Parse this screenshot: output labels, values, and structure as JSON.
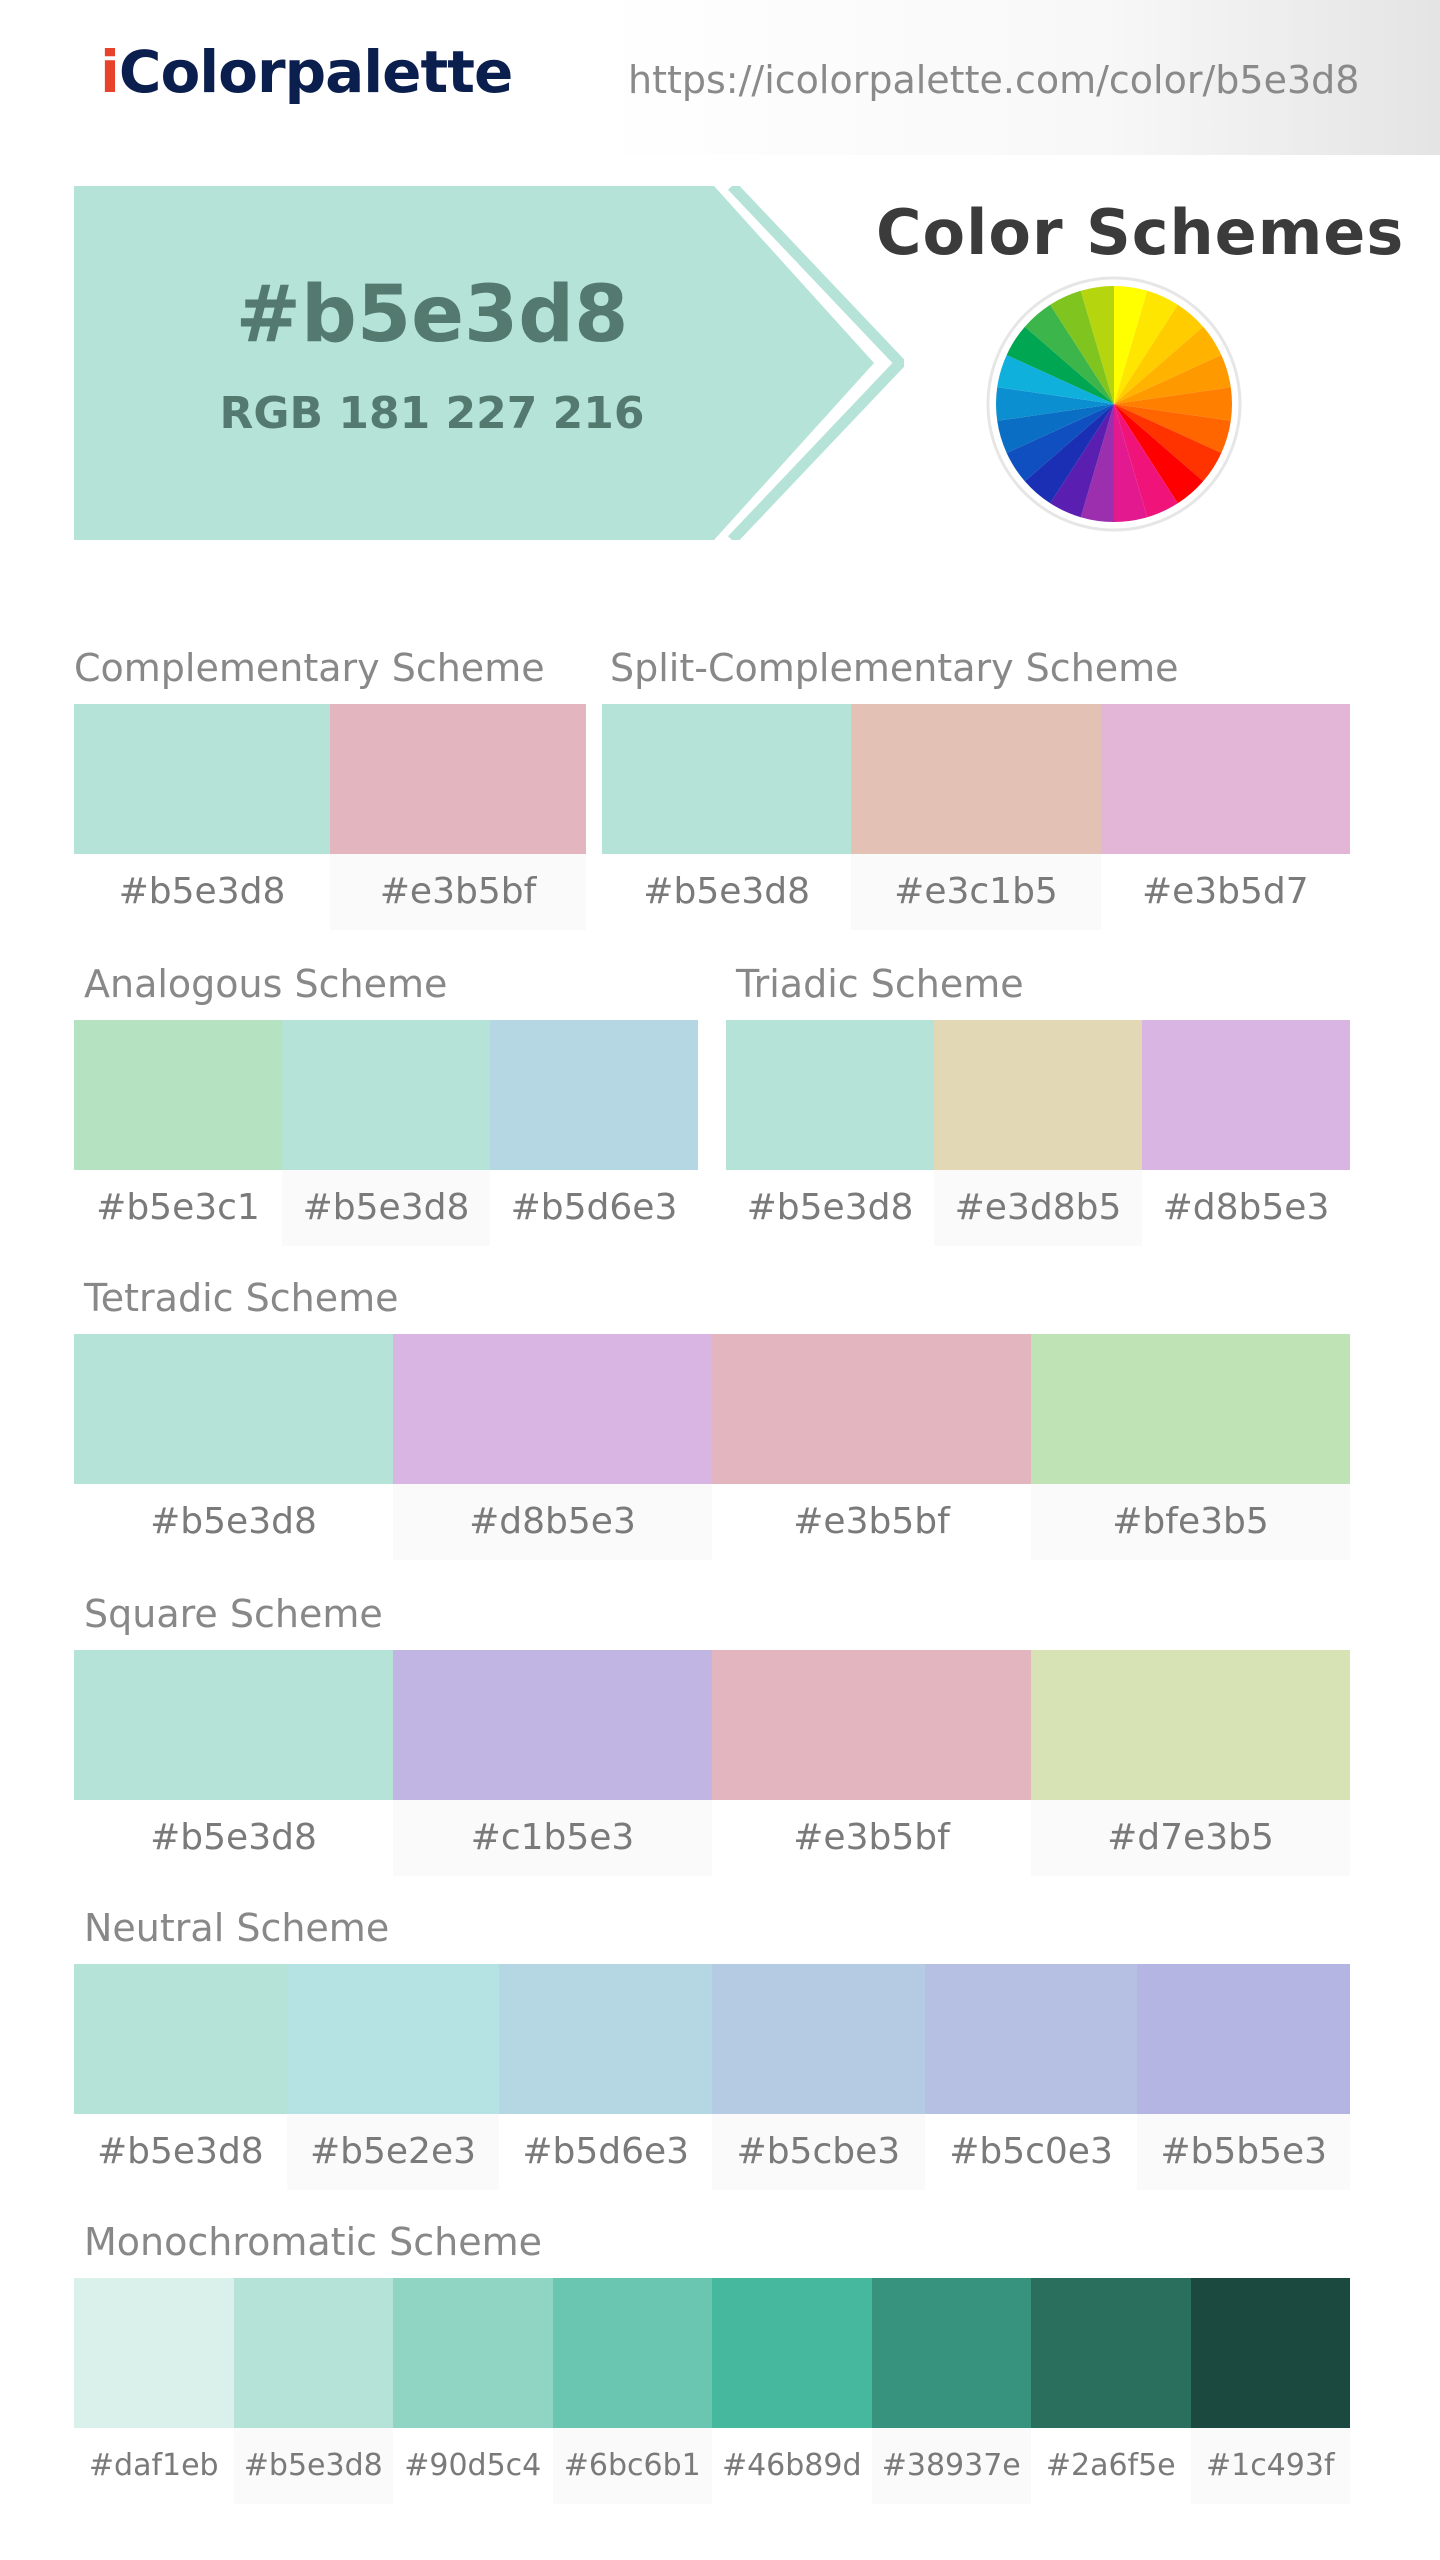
{
  "header": {
    "logo_i": "i",
    "logo_rest": "Colorpalette",
    "url": "https://icolorpalette.com/color/b5e3d8"
  },
  "hero": {
    "hex": "#b5e3d8",
    "rgb": "RGB 181 227 216",
    "color": "#b5e3d8"
  },
  "schemes_title": "Color Schemes",
  "color_wheel_icon": "color-wheel-icon",
  "wheel_colors": [
    "#ffff00",
    "#ffe600",
    "#ffcc00",
    "#ffb300",
    "#ff9900",
    "#ff8000",
    "#ff6600",
    "#ff3300",
    "#ff0000",
    "#f0147a",
    "#e31a8f",
    "#9b2fae",
    "#5a1fb0",
    "#1a2fb3",
    "#0f4fbf",
    "#0a6fc4",
    "#0b8fd0",
    "#10b0dd",
    "#00a651",
    "#3cb64a",
    "#7fc41f",
    "#b5d60f"
  ],
  "schemes": [
    {
      "key": "complementary",
      "title": "Complementary Scheme",
      "colors": [
        "#b5e3d8",
        "#e3b5bf"
      ]
    },
    {
      "key": "split-complementary",
      "title": "Split-Complementary Scheme",
      "colors": [
        "#b5e3d8",
        "#e3c1b5",
        "#e3b5d7"
      ]
    },
    {
      "key": "analogous",
      "title": "Analogous Scheme",
      "colors": [
        "#b5e3c1",
        "#b5e3d8",
        "#b5d6e3"
      ]
    },
    {
      "key": "triadic",
      "title": "Triadic Scheme",
      "colors": [
        "#b5e3d8",
        "#e3d8b5",
        "#d8b5e3"
      ]
    },
    {
      "key": "tetradic",
      "title": "Tetradic Scheme",
      "colors": [
        "#b5e3d8",
        "#d8b5e3",
        "#e3b5bf",
        "#bfe3b5"
      ]
    },
    {
      "key": "square",
      "title": "Square Scheme",
      "colors": [
        "#b5e3d8",
        "#c1b5e3",
        "#e3b5bf",
        "#d7e3b5"
      ]
    },
    {
      "key": "neutral",
      "title": "Neutral Scheme",
      "colors": [
        "#b5e3d8",
        "#b5e2e3",
        "#b5d6e3",
        "#b5cbe3",
        "#b5c0e3",
        "#b5b5e3"
      ]
    },
    {
      "key": "monochromatic",
      "title": "Monochromatic Scheme",
      "colors": [
        "#daf1eb",
        "#b5e3d8",
        "#90d5c4",
        "#6bc6b1",
        "#46b89d",
        "#38937e",
        "#2a6f5e",
        "#1c493f"
      ]
    }
  ]
}
